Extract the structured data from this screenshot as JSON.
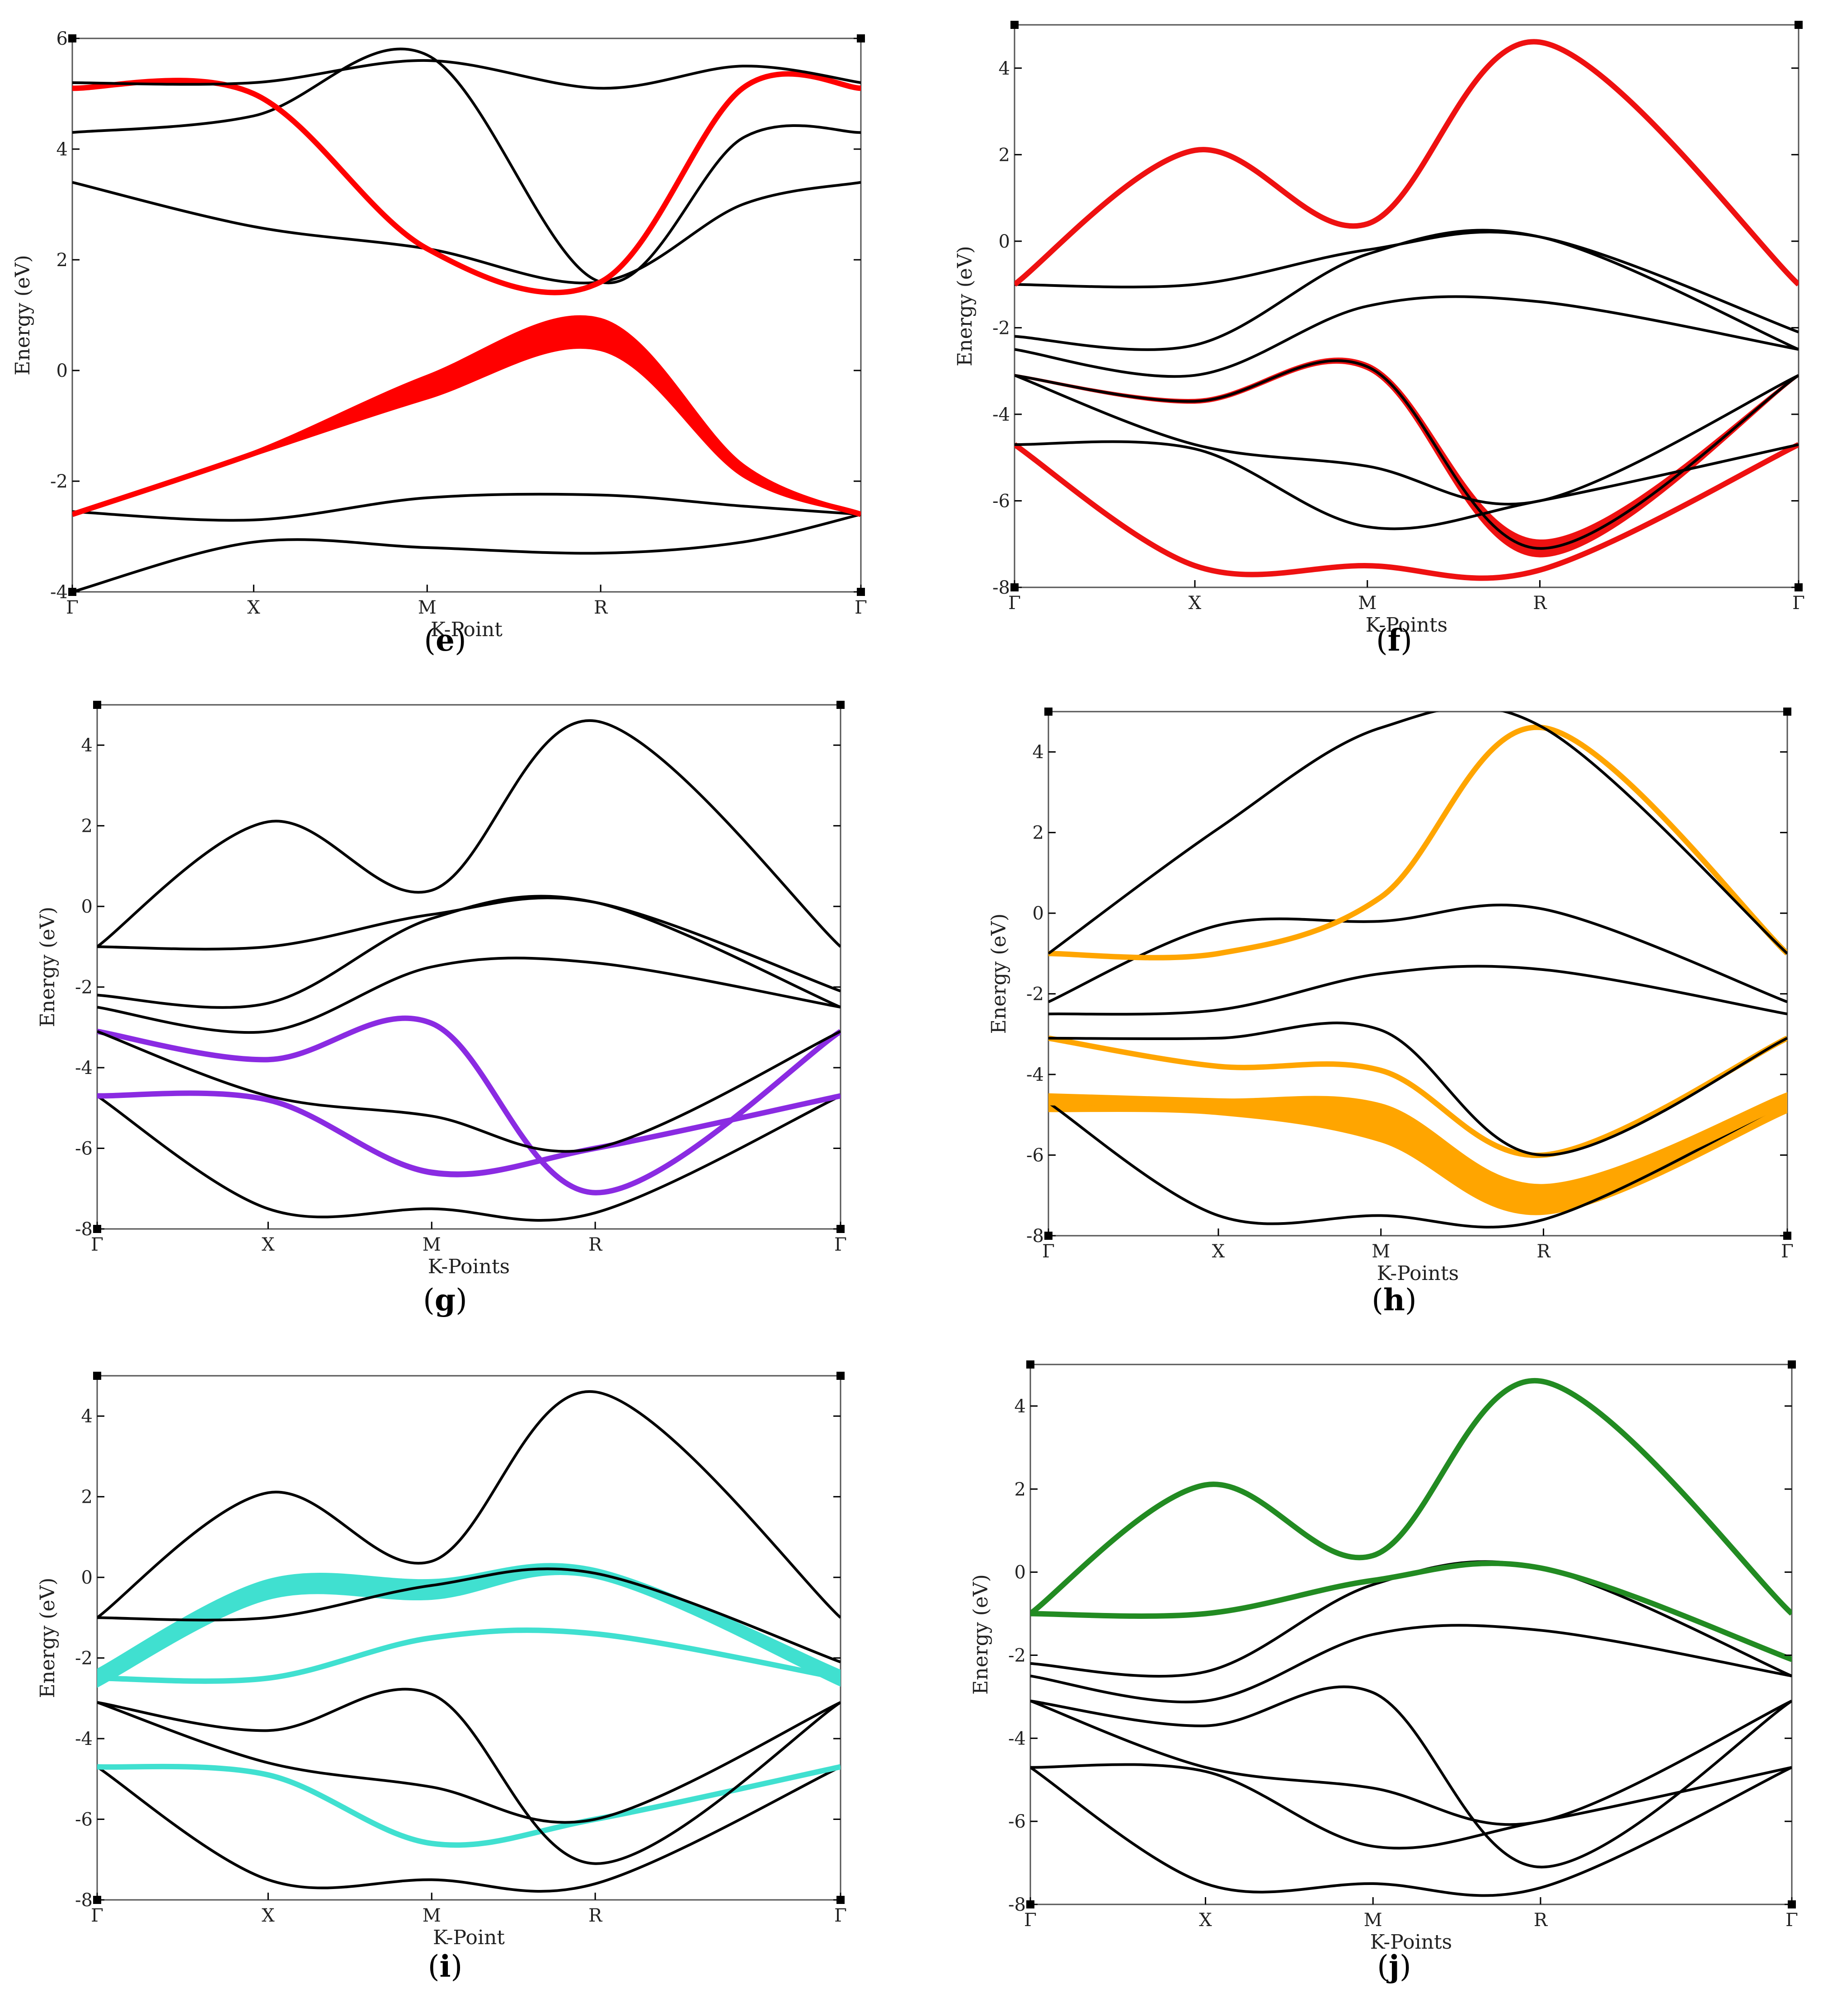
{
  "figure": {
    "description_labels": [
      "e",
      "f",
      "g",
      "h",
      "i",
      "j"
    ]
  },
  "chart_data": [
    {
      "id": "e",
      "type": "line",
      "caption": "e",
      "xlabel": "K-Point",
      "ylabel": "Energy (eV)",
      "ylim": [
        -4,
        6
      ],
      "yticks": [
        "6",
        "4",
        "2",
        "0",
        "-2",
        "-4"
      ],
      "xticks": [
        "Γ",
        "X",
        "M",
        "R",
        "Γ"
      ],
      "highlight_color": "#ff0000",
      "bands": [
        [
          -4.0,
          -3.1,
          -3.2,
          -3.3,
          -3.1,
          -2.6
        ],
        [
          -2.55,
          -2.7,
          -2.3,
          -2.25,
          -2.45,
          -2.6
        ],
        [
          -2.6,
          -1.5,
          -0.3,
          0.65,
          -1.8,
          -2.6
        ],
        [
          3.4,
          2.6,
          2.2,
          1.6,
          3.0,
          3.4
        ],
        [
          4.3,
          4.6,
          5.7,
          1.6,
          4.2,
          4.3
        ],
        [
          5.1,
          5.0,
          2.2,
          1.6,
          5.1,
          5.1
        ],
        [
          5.2,
          5.2,
          5.6,
          5.1,
          5.5,
          5.2
        ]
      ],
      "highlighted": [
        2,
        5
      ],
      "fat_band": {
        "band": 2,
        "width": [
          0.0,
          0.05,
          0.4,
          0.55,
          0.2,
          0.0
        ]
      }
    },
    {
      "id": "f",
      "type": "line",
      "caption": "f",
      "xlabel": "K-Points",
      "ylabel": "Energy (eV)",
      "ylim": [
        -8,
        5
      ],
      "yticks": [
        "4",
        "2",
        "0",
        "-2",
        "-4",
        "-6",
        "-8"
      ],
      "xticks": [
        "Γ",
        "X",
        "M",
        "R",
        "Γ"
      ],
      "highlight_color": "#ee1111",
      "bands": [
        [
          -4.7,
          -7.5,
          -7.5,
          -7.6,
          -4.7
        ],
        [
          -4.7,
          -4.8,
          -6.6,
          -6.0,
          -4.7
        ],
        [
          -3.1,
          -4.7,
          -5.2,
          -6.0,
          -3.1
        ],
        [
          -3.1,
          -3.7,
          -2.9,
          -7.1,
          -3.1
        ],
        [
          -2.5,
          -3.1,
          -1.5,
          -1.4,
          -2.5
        ],
        [
          -2.2,
          -2.4,
          -0.3,
          0.1,
          -2.5
        ],
        [
          -1.0,
          -1.0,
          -0.2,
          0.1,
          -2.1
        ],
        [
          -1.0,
          2.1,
          0.4,
          4.6,
          -1.0
        ]
      ],
      "highlighted": [
        0,
        7
      ],
      "fat_band": {
        "band": 3,
        "width": [
          0.0,
          0.05,
          0.1,
          0.35,
          0.0
        ]
      }
    },
    {
      "id": "g",
      "type": "line",
      "caption": "g",
      "xlabel": "K-Points",
      "ylabel": "Energy (eV)",
      "ylim": [
        -8,
        5
      ],
      "yticks": [
        "4",
        "2",
        "0",
        "-2",
        "-4",
        "-6",
        "-8"
      ],
      "xticks": [
        "Γ",
        "X",
        "M",
        "R",
        "Γ"
      ],
      "highlight_color": "#8a2be2",
      "bands": [
        [
          -4.7,
          -7.5,
          -7.5,
          -7.6,
          -4.7
        ],
        [
          -4.7,
          -4.8,
          -6.6,
          -6.0,
          -4.7
        ],
        [
          -3.1,
          -3.8,
          -2.9,
          -7.1,
          -3.1
        ],
        [
          -3.1,
          -4.7,
          -5.2,
          -6.0,
          -3.1
        ],
        [
          -2.5,
          -3.1,
          -1.5,
          -1.4,
          -2.5
        ],
        [
          -2.2,
          -2.4,
          -0.3,
          0.1,
          -2.5
        ],
        [
          -1.0,
          -1.0,
          -0.2,
          0.1,
          -2.1
        ],
        [
          -1.0,
          2.1,
          0.4,
          4.6,
          -1.0
        ]
      ],
      "highlighted": [
        1,
        2
      ],
      "fat_band": {
        "band": 1,
        "width": [
          0.0,
          0.03,
          0.08,
          0.05,
          0.0
        ]
      }
    },
    {
      "id": "h",
      "type": "line",
      "caption": "h",
      "xlabel": "K-Points",
      "ylabel": "Energy (eV)",
      "ylim": [
        -8,
        5
      ],
      "yticks": [
        "4",
        "2",
        "0",
        "-2",
        "-4",
        "-6",
        "-8"
      ],
      "xticks": [
        "Γ",
        "X",
        "M",
        "R",
        "Γ"
      ],
      "highlight_color": "#ffa500",
      "bands": [
        [
          -4.7,
          -7.5,
          -7.5,
          -7.6,
          -4.7
        ],
        [
          -4.7,
          -4.8,
          -5.2,
          -7.1,
          -4.7
        ],
        [
          -3.1,
          -3.8,
          -3.9,
          -6.0,
          -3.1
        ],
        [
          -3.1,
          -3.1,
          -2.9,
          -6.0,
          -3.1
        ],
        [
          -2.5,
          -2.4,
          -1.5,
          -1.4,
          -2.5
        ],
        [
          -2.2,
          -0.3,
          -0.2,
          0.1,
          -2.2
        ],
        [
          -1.0,
          -1.0,
          0.4,
          4.6,
          -1.0
        ],
        [
          -1.0,
          2.1,
          4.6,
          4.6,
          -1.0
        ]
      ],
      "highlighted": [
        1,
        2,
        6
      ],
      "fat_band": {
        "band": 1,
        "width": [
          0.4,
          0.35,
          0.9,
          0.7,
          0.45
        ]
      }
    },
    {
      "id": "i",
      "type": "line",
      "caption": "i",
      "xlabel": "K-Point",
      "ylabel": "Energy (eV)",
      "ylim": [
        -8,
        5
      ],
      "yticks": [
        "4",
        "2",
        "0",
        "-2",
        "-4",
        "-6",
        "-8"
      ],
      "xticks": [
        "Γ",
        "X",
        "M",
        "R",
        "Γ"
      ],
      "highlight_color": "#40e0d0",
      "bands": [
        [
          -4.7,
          -7.5,
          -7.5,
          -7.6,
          -4.7
        ],
        [
          -4.7,
          -4.9,
          -6.6,
          -6.0,
          -4.7
        ],
        [
          -3.1,
          -4.6,
          -5.2,
          -6.0,
          -3.1
        ],
        [
          -3.1,
          -3.8,
          -2.9,
          -7.1,
          -3.1
        ],
        [
          -2.5,
          -2.5,
          -1.5,
          -1.4,
          -2.5
        ],
        [
          -2.5,
          -0.3,
          -0.3,
          0.1,
          -2.5
        ],
        [
          -1.0,
          -1.0,
          -0.2,
          0.1,
          -2.1
        ],
        [
          -1.0,
          2.1,
          0.4,
          4.6,
          -1.0
        ]
      ],
      "highlighted": [
        1,
        4,
        5
      ],
      "fat_band": {
        "band": 5,
        "width": [
          0.4,
          0.45,
          0.45,
          0.2,
          0.35
        ]
      }
    },
    {
      "id": "j",
      "type": "line",
      "caption": "j",
      "xlabel": "K-Points",
      "ylabel": "Energy (eV)",
      "ylim": [
        -8,
        5
      ],
      "yticks": [
        "4",
        "2",
        "0",
        "-2",
        "-4",
        "-6",
        "-8"
      ],
      "xticks": [
        "Γ",
        "X",
        "M",
        "R",
        "Γ"
      ],
      "highlight_color": "#228b22",
      "bands": [
        [
          -4.7,
          -7.5,
          -7.5,
          -7.6,
          -4.7
        ],
        [
          -4.7,
          -4.8,
          -6.6,
          -6.0,
          -4.7
        ],
        [
          -3.1,
          -4.7,
          -5.2,
          -6.0,
          -3.1
        ],
        [
          -3.1,
          -3.7,
          -2.9,
          -7.1,
          -3.1
        ],
        [
          -2.5,
          -3.1,
          -1.5,
          -1.4,
          -2.5
        ],
        [
          -2.2,
          -2.4,
          -0.3,
          0.1,
          -2.5
        ],
        [
          -1.0,
          -1.0,
          -0.2,
          0.1,
          -2.1
        ],
        [
          -1.0,
          2.1,
          0.4,
          4.6,
          -1.0
        ]
      ],
      "highlighted": [
        6,
        7
      ],
      "fat_band": {
        "band": 6,
        "width": [
          0.05,
          0.05,
          0.03,
          0.02,
          0.05
        ]
      }
    }
  ]
}
